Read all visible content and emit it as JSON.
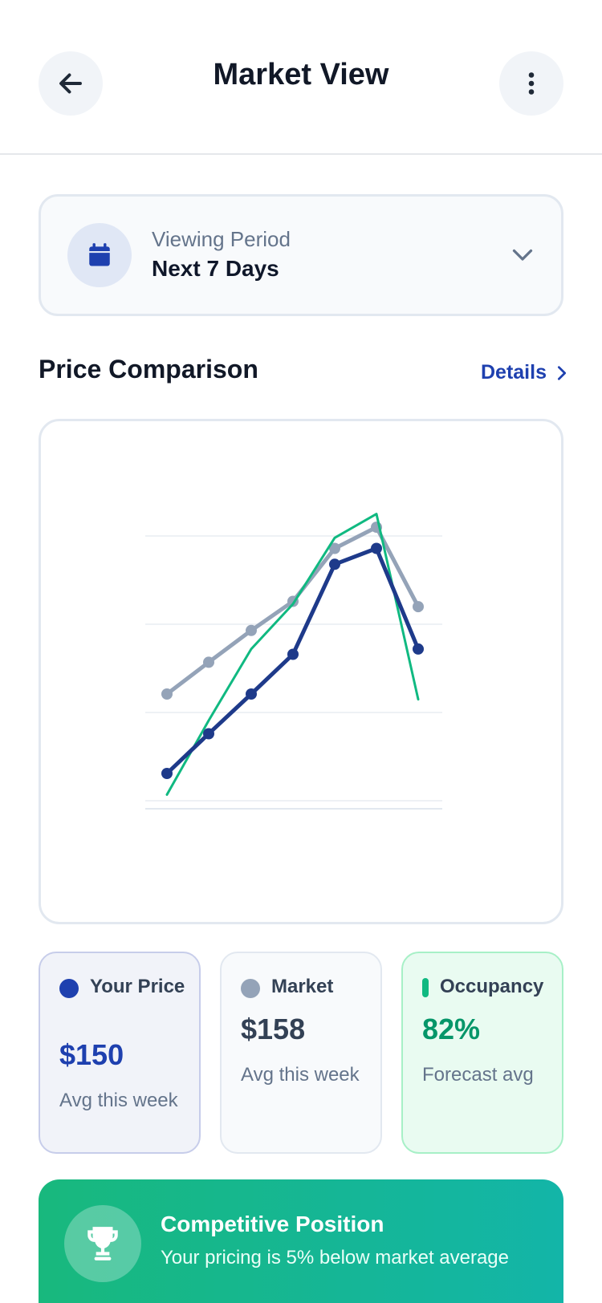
{
  "header": {
    "title": "Market View",
    "back_icon": "arrow-left-icon",
    "more_icon": "more-vertical-icon"
  },
  "period": {
    "label": "Viewing Period",
    "value": "Next 7 Days",
    "icon": "calendar-icon"
  },
  "section": {
    "title": "Price Comparison",
    "details_label": "Details"
  },
  "chart_data": {
    "type": "line",
    "x": [
      1,
      2,
      3,
      4,
      5,
      6,
      7
    ],
    "ylim": [
      0,
      1
    ],
    "grid": true,
    "series": [
      {
        "key": "market",
        "color": "#94a3b8",
        "markers": true,
        "values": [
          0.4,
          0.52,
          0.64,
          0.75,
          0.95,
          1.03,
          0.73
        ]
      },
      {
        "key": "occupancy",
        "color": "#10b981",
        "markers": false,
        "values": [
          0.02,
          0.3,
          0.57,
          0.74,
          0.99,
          1.08,
          0.38
        ]
      },
      {
        "key": "your_price",
        "color": "#1e3a8a",
        "markers": true,
        "values": [
          0.1,
          0.25,
          0.4,
          0.55,
          0.89,
          0.95,
          0.57
        ]
      }
    ]
  },
  "stats": {
    "your_price": {
      "label": "Your Price",
      "value": "$150",
      "sub": "Avg this week",
      "color": "#1e40af"
    },
    "market": {
      "label": "Market",
      "value": "$158",
      "sub": "Avg this week",
      "color": "#94a3b8"
    },
    "occupancy": {
      "label": "Occupancy",
      "value": "82%",
      "sub": "Forecast avg",
      "color": "#10b981"
    }
  },
  "banner": {
    "title": "Competitive Position",
    "subtitle": "Your pricing is 5% below market average",
    "icon": "trophy-icon"
  }
}
